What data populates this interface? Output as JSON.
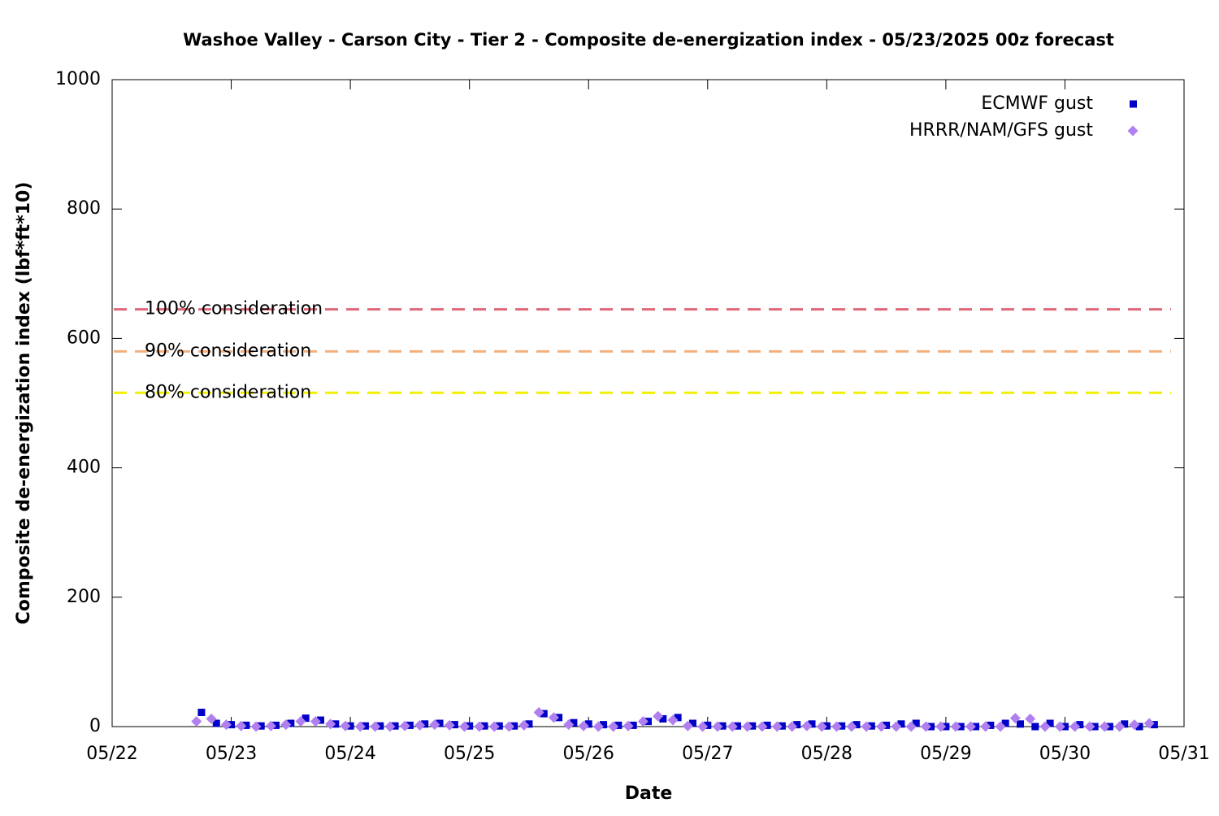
{
  "chart_data": {
    "type": "scatter",
    "title": "Washoe Valley - Carson City - Tier 2 - Composite de-energization index - 05/23/2025 00z forecast",
    "x_label": "Date",
    "y_label": "Composite de-energization index (lbf*ft*10)",
    "xlim": [
      0,
      9
    ],
    "xticks": [
      {
        "value": 0,
        "label": "05/22"
      },
      {
        "value": 1,
        "label": "05/23"
      },
      {
        "value": 2,
        "label": "05/24"
      },
      {
        "value": 3,
        "label": "05/25"
      },
      {
        "value": 4,
        "label": "05/26"
      },
      {
        "value": 5,
        "label": "05/27"
      },
      {
        "value": 6,
        "label": "05/28"
      },
      {
        "value": 7,
        "label": "05/29"
      },
      {
        "value": 8,
        "label": "05/30"
      },
      {
        "value": 9,
        "label": "05/31"
      }
    ],
    "ylim": [
      0,
      1000
    ],
    "yticks": [
      0,
      200,
      400,
      600,
      800,
      1000
    ],
    "legend": "top-right",
    "reference_lines": [
      {
        "label": "100% consideration",
        "value": 645,
        "color": "#e06678"
      },
      {
        "label": "90% consideration",
        "value": 580,
        "color": "#f4b07c"
      },
      {
        "label": "80% consideration",
        "value": 516,
        "color": "#f0f000"
      }
    ],
    "series": [
      {
        "name": "ECMWF gust",
        "color": "#0000c8",
        "marker": "square",
        "x": [
          0.75,
          0.875,
          1,
          1.125,
          1.25,
          1.375,
          1.5,
          1.625,
          1.75,
          1.875,
          2,
          2.125,
          2.25,
          2.375,
          2.5,
          2.625,
          2.75,
          2.875,
          3,
          3.125,
          3.25,
          3.375,
          3.5,
          3.625,
          3.75,
          3.875,
          4,
          4.125,
          4.25,
          4.375,
          4.5,
          4.625,
          4.75,
          4.875,
          5,
          5.125,
          5.25,
          5.375,
          5.5,
          5.625,
          5.75,
          5.875,
          6,
          6.125,
          6.25,
          6.375,
          6.5,
          6.625,
          6.75,
          6.875,
          7,
          7.125,
          7.25,
          7.375,
          7.5,
          7.625,
          7.75,
          7.875,
          8,
          8.125,
          8.25,
          8.375,
          8.5,
          8.625,
          8.75
        ],
        "values": [
          22,
          5,
          3,
          2,
          1,
          2,
          5,
          13,
          10,
          4,
          1,
          1,
          1,
          1,
          2,
          4,
          5,
          3,
          1,
          1,
          1,
          1,
          4,
          20,
          14,
          6,
          4,
          3,
          2,
          2,
          8,
          12,
          14,
          5,
          2,
          1,
          1,
          1,
          2,
          1,
          3,
          4,
          1,
          1,
          3,
          1,
          2,
          4,
          5,
          0,
          0,
          0,
          0,
          2,
          5,
          4,
          0,
          5,
          0,
          3,
          0,
          0,
          4,
          0,
          3
        ]
      },
      {
        "name": "HRRR/NAM/GFS gust",
        "color": "#b080f0",
        "marker": "diamond",
        "x": [
          0.708,
          0.833,
          0.958,
          1.083,
          1.208,
          1.333,
          1.458,
          1.583,
          1.708,
          1.833,
          1.958,
          2.083,
          2.208,
          2.333,
          2.458,
          2.583,
          2.708,
          2.833,
          2.958,
          3.083,
          3.208,
          3.333,
          3.458,
          3.583,
          3.708,
          3.833,
          3.958,
          4.083,
          4.208,
          4.333,
          4.458,
          4.583,
          4.708,
          4.833,
          4.958,
          5.083,
          5.208,
          5.333,
          5.458,
          5.583,
          5.708,
          5.833,
          5.958,
          6.083,
          6.208,
          6.333,
          6.458,
          6.583,
          6.708,
          6.833,
          6.958,
          7.083,
          7.208,
          7.333,
          7.458,
          7.583,
          7.708,
          7.833,
          7.958,
          8.083,
          8.208,
          8.333,
          8.458,
          8.583,
          8.708
        ],
        "values": [
          8,
          12,
          3,
          1,
          0,
          1,
          3,
          8,
          8,
          4,
          1,
          0,
          0,
          0,
          1,
          2,
          3,
          2,
          0,
          0,
          0,
          0,
          2,
          22,
          14,
          3,
          1,
          0,
          0,
          1,
          8,
          16,
          10,
          1,
          0,
          0,
          0,
          0,
          0,
          0,
          0,
          1,
          0,
          0,
          0,
          0,
          0,
          0,
          0,
          0,
          0,
          0,
          0,
          0,
          0,
          13,
          12,
          0,
          0,
          0,
          0,
          0,
          0,
          3,
          5
        ]
      }
    ]
  }
}
